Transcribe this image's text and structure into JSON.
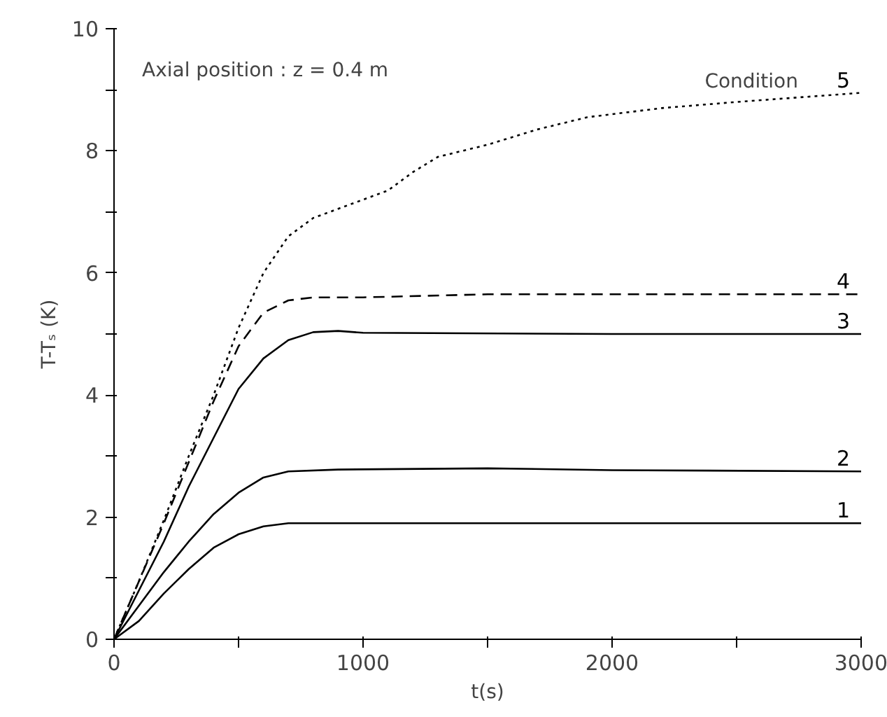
{
  "chart_data": {
    "type": "line",
    "xlabel": "t(s)",
    "ylabel": "T-Tₛ (K)",
    "annotations": [
      "Axial position : z = 0.4 m",
      "Condition"
    ],
    "xlim": [
      0,
      3000
    ],
    "ylim": [
      0,
      10
    ],
    "xticks": [
      0,
      {
        "value": 500,
        "label": null
      },
      1000,
      {
        "value": 1500,
        "label": null
      },
      2000,
      {
        "value": 2500,
        "label": null
      },
      3000
    ],
    "yticks": [
      0,
      {
        "value": 1,
        "label": null
      },
      2,
      {
        "value": 3,
        "label": null
      },
      4,
      {
        "value": 5,
        "label": null
      },
      6,
      {
        "value": 7,
        "label": null
      },
      8,
      {
        "value": 9,
        "label": null
      },
      10
    ],
    "grid": false,
    "legend": false,
    "series": [
      {
        "name": "1",
        "color": "#000000",
        "line_style": "solid",
        "x": [
          0,
          100,
          200,
          300,
          400,
          500,
          600,
          700,
          1000,
          2000,
          3000
        ],
        "values": [
          0,
          0.3,
          0.75,
          1.15,
          1.5,
          1.72,
          1.85,
          1.9,
          1.9,
          1.9,
          1.9
        ]
      },
      {
        "name": "2",
        "color": "#000000",
        "line_style": "solid",
        "x": [
          0,
          100,
          200,
          300,
          400,
          500,
          600,
          700,
          900,
          1500,
          2000,
          3000
        ],
        "values": [
          0,
          0.55,
          1.1,
          1.6,
          2.05,
          2.4,
          2.65,
          2.75,
          2.78,
          2.8,
          2.77,
          2.75
        ]
      },
      {
        "name": "3",
        "color": "#000000",
        "line_style": "solid",
        "x": [
          0,
          100,
          200,
          300,
          400,
          500,
          600,
          700,
          800,
          900,
          1000,
          2000,
          3000
        ],
        "values": [
          0,
          0.8,
          1.6,
          2.5,
          3.3,
          4.1,
          4.6,
          4.9,
          5.03,
          5.05,
          5.02,
          5.0,
          5.0
        ]
      },
      {
        "name": "4",
        "color": "#000000",
        "line_style": "dashed",
        "x": [
          0,
          100,
          200,
          300,
          400,
          500,
          600,
          700,
          800,
          1000,
          1500,
          3000
        ],
        "values": [
          0,
          0.95,
          1.9,
          2.9,
          3.9,
          4.8,
          5.35,
          5.55,
          5.6,
          5.6,
          5.65,
          5.65
        ]
      },
      {
        "name": "5",
        "color": "#000000",
        "line_style": "dotted",
        "x": [
          0,
          100,
          200,
          300,
          400,
          500,
          600,
          700,
          800,
          900,
          1000,
          1100,
          1200,
          1300,
          1500,
          1700,
          1900,
          2200,
          2500,
          3000
        ],
        "values": [
          0,
          0.95,
          1.95,
          3.0,
          4.0,
          5.1,
          6.0,
          6.6,
          6.9,
          7.05,
          7.2,
          7.35,
          7.65,
          7.9,
          8.1,
          8.35,
          8.55,
          8.7,
          8.8,
          8.95
        ]
      }
    ]
  }
}
